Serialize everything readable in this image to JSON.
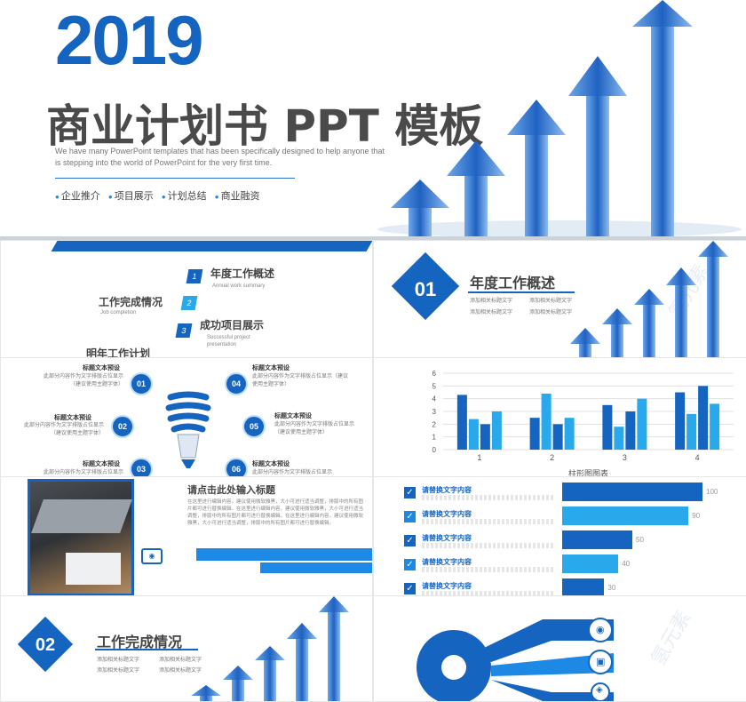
{
  "hero": {
    "year": "2019",
    "title": "商业计划书 PPT 模板",
    "subtitle": "We have many PowerPoint templates that has been specifically designed to help anyone that is stepping into the world of PowerPoint for the very first time.",
    "tags": [
      "企业推介",
      "项目展示",
      "计划总结",
      "商业融资"
    ]
  },
  "toc": {
    "left_items": [
      "工作完成情况",
      "明年工作计划"
    ],
    "left_sub": [
      "Job completion"
    ],
    "right_items": [
      {
        "num": "1",
        "title": "年度工作概述",
        "sub": "Annual work summary"
      },
      {
        "num": "2",
        "title": "",
        "sub": ""
      },
      {
        "num": "3",
        "title": "成功项目展示",
        "sub": "Successful project presentation"
      }
    ]
  },
  "section1": {
    "num": "01",
    "title": "年度工作概述",
    "bullets": [
      "添加相关标题文字",
      "添加相关标题文字",
      "添加相关标题文字",
      "添加相关标题文字"
    ]
  },
  "bulb": {
    "items": [
      {
        "num": "01",
        "title": "标题文本预设",
        "desc": "此部分内容作为文字排版占位显示（建议使用主题字体）"
      },
      {
        "num": "02",
        "title": "标题文本预设",
        "desc": "此部分内容作为文字排版占位显示（建议使用主题字体）"
      },
      {
        "num": "03",
        "title": "标题文本预设",
        "desc": "此部分内容作为文字排版占位显示"
      },
      {
        "num": "04",
        "title": "标题文本预设",
        "desc": "此部分内容作为文字排版占位显示（建议使用主题字体）"
      },
      {
        "num": "05",
        "title": "标题文本预设",
        "desc": "此部分内容作为文字排版占位显示（建议使用主题字体）"
      },
      {
        "num": "06",
        "title": "标题文本预设",
        "desc": "此部分内容作为文字排版占位显示"
      }
    ]
  },
  "chart_data": {
    "type": "bar",
    "categories": [
      "1",
      "2",
      "3",
      "4"
    ],
    "series": [
      {
        "values": [
          4.3,
          2.5,
          3.5,
          4.5
        ]
      },
      {
        "values": [
          2.4,
          4.4,
          1.8,
          2.8
        ]
      },
      {
        "values": [
          2.0,
          2.0,
          3.0,
          5.0
        ]
      },
      {
        "values": [
          3.0,
          2.5,
          4.0,
          3.6
        ]
      }
    ],
    "ylim": [
      0,
      6
    ],
    "yticks": [
      "0",
      "1",
      "2",
      "3",
      "4",
      "5",
      "6"
    ],
    "xlabel": "柱形图图表",
    "colors": [
      "#1565c0",
      "#29a9eb",
      "#1565c0",
      "#29a9eb"
    ]
  },
  "laptop": {
    "title": "请点击此处输入标题",
    "body": "在这里进行编辑内容，建议使用微软雅黑，大小可进行适当调整，排版中的所有图片都可进行替换编辑。在这里进行编辑内容，建议使用微软雅黑，大小可进行适当调整，排版中的所有图片都可进行替换编辑。在这里进行编辑内容，建议使用微软雅黑，大小可进行适当调整，排版中的所有图片都可进行替换编辑。"
  },
  "checklist": {
    "items": [
      {
        "title": "请替换文字内容",
        "value": "100"
      },
      {
        "title": "请替换文字内容",
        "value": "90"
      },
      {
        "title": "请替换文字内容",
        "value": "50"
      },
      {
        "title": "请替换文字内容",
        "value": "40"
      },
      {
        "title": "请替换文字内容",
        "value": "30"
      }
    ],
    "values": [
      100,
      90,
      50,
      40,
      30
    ]
  },
  "section2": {
    "num": "02",
    "title": "工作完成情况",
    "bullets": [
      "添加相关标题文字",
      "添加相关标题文字",
      "添加相关标题文字",
      "添加相关标题文字"
    ]
  },
  "watermark": "氢元素",
  "colors": {
    "primary": "#1565c0",
    "light": "#29a9eb",
    "text": "#4a4a4a"
  }
}
